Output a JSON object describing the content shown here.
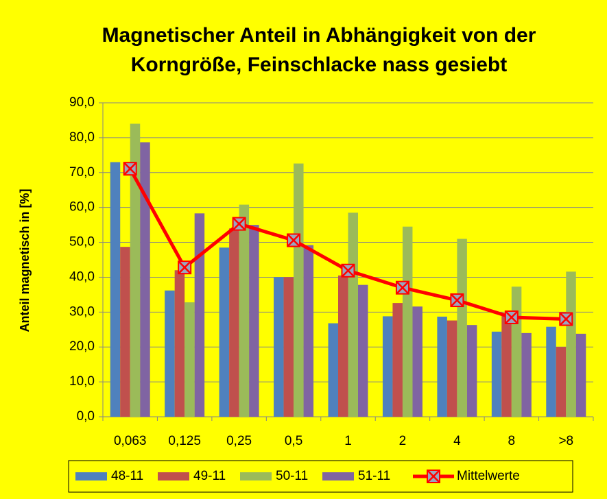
{
  "chart_data": {
    "type": "bar",
    "title": "Magnetischer Anteil in Abhängigkeit von der Korngröße, Feinschlacke nass gesiebt",
    "ylabel": "Anteil magnetisch in [%]",
    "categories": [
      "0,063",
      "0,125",
      "0,25",
      "0,5",
      "1",
      "2",
      "4",
      "8",
      ">8"
    ],
    "series": [
      {
        "name": "48-11",
        "color": "#4f81bd",
        "values": [
          73,
          36.2,
          48.5,
          40,
          26.8,
          28.8,
          28.7,
          24.4,
          25.8
        ]
      },
      {
        "name": "49-11",
        "color": "#c0504d",
        "values": [
          48.7,
          42,
          54,
          40,
          40.5,
          32.6,
          27.6,
          29,
          20
        ]
      },
      {
        "name": "50-11",
        "color": "#9bbb59",
        "values": [
          84,
          32.8,
          60.8,
          72.6,
          58.5,
          54.5,
          51,
          37.3,
          41.6
        ]
      },
      {
        "name": "51-11",
        "color": "#8064a2",
        "values": [
          78.7,
          58.3,
          55,
          49.2,
          37.8,
          31.6,
          26.3,
          24,
          23.8
        ]
      },
      {
        "name": "Mittelwerte",
        "color": "#ff0000",
        "type": "line",
        "values": [
          71.1,
          42.8,
          55.3,
          50.6,
          41.9,
          37,
          33.4,
          28.5,
          28
        ]
      }
    ],
    "ylim": [
      0,
      90
    ],
    "yticks": [
      {
        "value": 0,
        "label": "0,0"
      },
      {
        "value": 10,
        "label": "10,0"
      },
      {
        "value": 20,
        "label": "20,0"
      },
      {
        "value": 30,
        "label": "30,0"
      },
      {
        "value": 40,
        "label": "40,0"
      },
      {
        "value": 50,
        "label": "50,0"
      },
      {
        "value": 60,
        "label": "60,0"
      },
      {
        "value": 70,
        "label": "70,0"
      },
      {
        "value": 80,
        "label": "80,0"
      },
      {
        "value": 90,
        "label": "90,0"
      }
    ],
    "grid": true,
    "legend": "bottom",
    "background": "#ffff00"
  }
}
